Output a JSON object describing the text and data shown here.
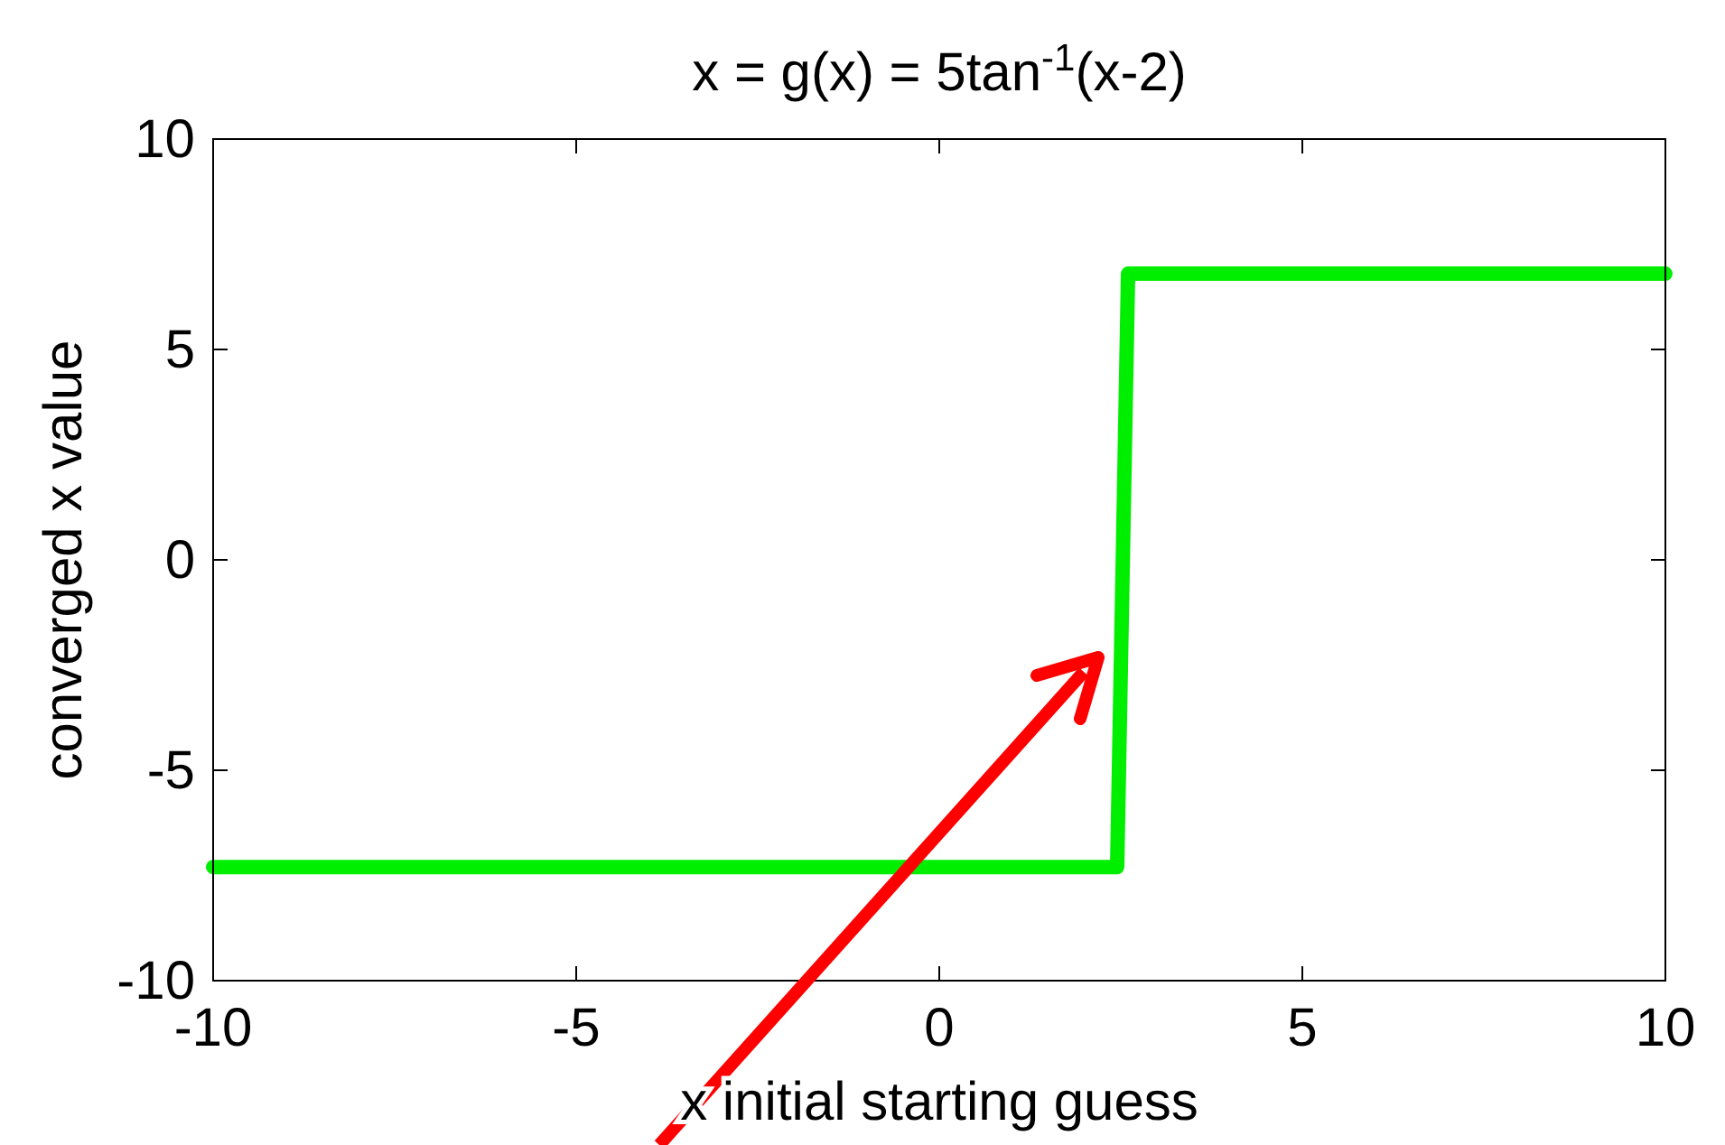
{
  "chart_data": {
    "type": "line",
    "title": "x = g(x) = 5tan$^{-1}$(x-2)",
    "xlabel": "x initial starting guess",
    "ylabel": "converged x value",
    "x": [
      -10,
      2.45,
      2.6,
      10
    ],
    "series": [
      {
        "color": "#00ee00",
        "values": [
          -7.3,
          -7.3,
          6.8,
          6.8
        ]
      }
    ],
    "xlim": [
      -10,
      10
    ],
    "xticks": [
      -10,
      -5,
      0,
      5,
      10
    ],
    "ylim": [
      -10,
      10
    ],
    "yticks": [
      -10,
      -5,
      0,
      5,
      10
    ],
    "grid": false,
    "marker": "none",
    "line_style": "solid"
  }
}
